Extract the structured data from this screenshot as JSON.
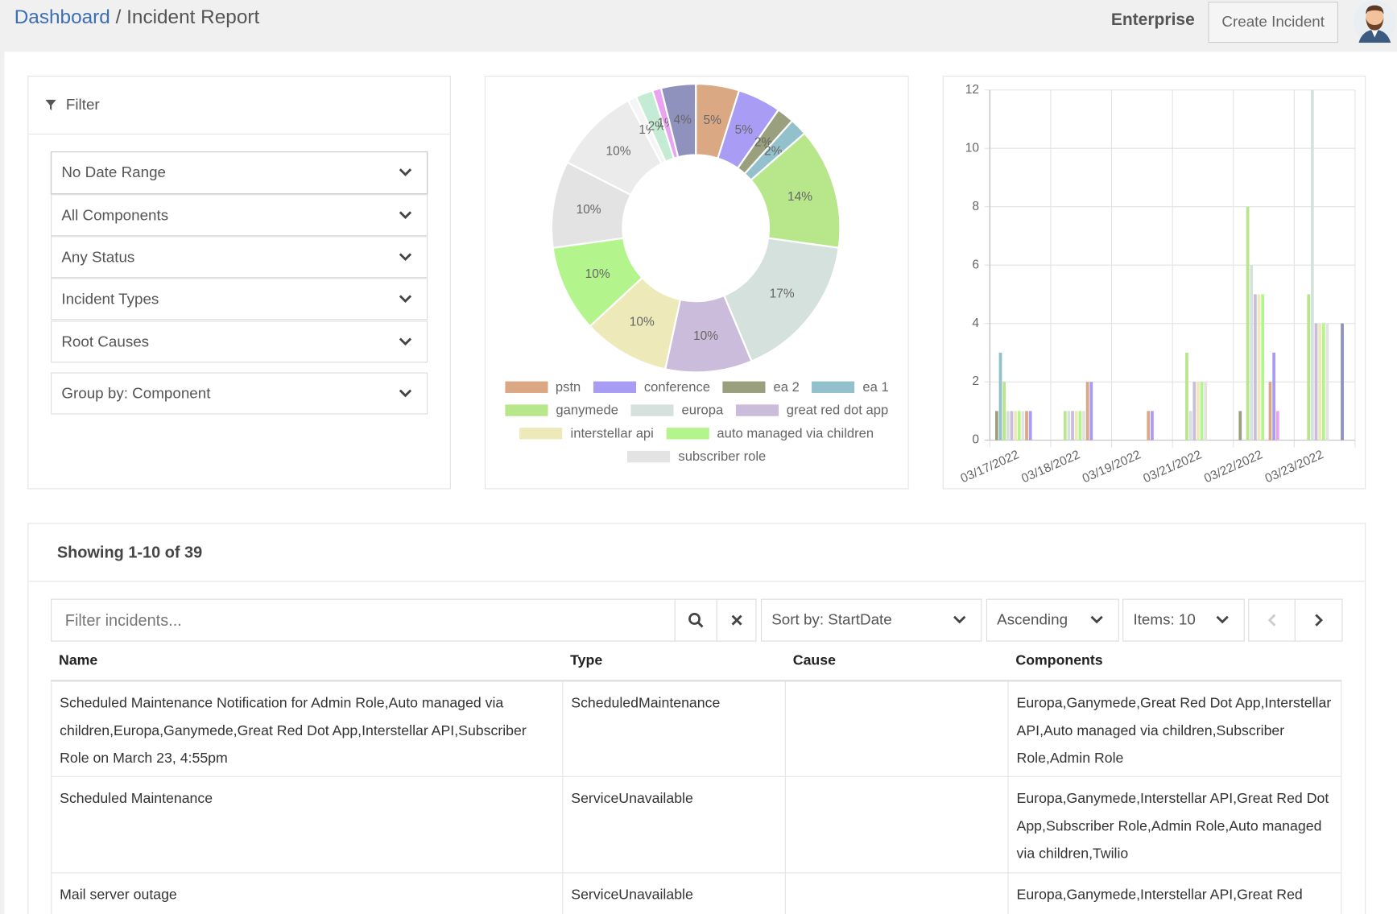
{
  "header": {
    "breadcrumb": [
      "Dashboard",
      "Incident Report"
    ],
    "separator": "/",
    "plan": "Enterprise",
    "button": "Create Incident"
  },
  "filter": {
    "title": "Filter",
    "options": [
      "No Date Range",
      "All Components",
      "Any Status",
      "Incident Types",
      "Root Causes"
    ],
    "group_by": "Group by: Component"
  },
  "chart_data": [
    {
      "type": "pie",
      "donut": true,
      "categories": [
        "pstn",
        "conference",
        "ea 2",
        "ea 1",
        "ganymede",
        "europa",
        "great red dot app",
        "interstellar api",
        "auto managed via children",
        "subscriber role",
        null,
        null,
        null,
        null,
        null
      ],
      "values": [
        5,
        5,
        2,
        2,
        14,
        17,
        10,
        10,
        10,
        10,
        10,
        1,
        2,
        1,
        4
      ],
      "value_labels": [
        "5%",
        "5%",
        "2%",
        "2%",
        "14%",
        "17%",
        "10%",
        "10%",
        "10%",
        "10%",
        "10%",
        "1%",
        "2%",
        "1%",
        "4%"
      ],
      "colors": [
        "#dba884",
        "#a99cf5",
        "#9aa07e",
        "#93c1cb",
        "#b8e68a",
        "#d5e1dd",
        "#cbbcdb",
        "#ede9b9",
        "#b3f58c",
        "#e3e3e3",
        "#ebebeb",
        "#f5f5f5",
        "#c4ecd4",
        "#e9a3f0",
        "#8f92bd"
      ]
    },
    {
      "type": "bar",
      "categories": [
        "03/17/2022",
        "03/18/2022",
        "03/19/2022",
        "03/21/2022",
        "03/22/2022",
        "03/23/2022"
      ],
      "series": [
        {
          "color": "#9aa07e",
          "values": [
            1,
            0,
            0,
            0,
            1,
            0
          ]
        },
        {
          "color": "#93c1cb",
          "values": [
            3,
            0,
            0,
            0,
            0,
            0
          ]
        },
        {
          "color": "#b8e68a",
          "values": [
            2,
            1,
            0,
            3,
            8,
            5
          ]
        },
        {
          "color": "#d5e1dd",
          "values": [
            1,
            1,
            0,
            1,
            6,
            12
          ]
        },
        {
          "color": "#cbbcdb",
          "values": [
            1,
            1,
            0,
            2,
            5,
            4
          ]
        },
        {
          "color": "#ede9b9",
          "values": [
            1,
            1,
            0,
            2,
            5,
            4
          ]
        },
        {
          "color": "#b3f58c",
          "values": [
            1,
            1,
            0,
            2,
            5,
            4
          ]
        },
        {
          "color": "#e3e3e3",
          "values": [
            1,
            1,
            0,
            2,
            0,
            4
          ]
        },
        {
          "color": "#dba884",
          "values": [
            1,
            2,
            1,
            0,
            2,
            0
          ]
        },
        {
          "color": "#a99cf5",
          "values": [
            1,
            2,
            1,
            0,
            3,
            0
          ]
        },
        {
          "color": "#e9a3f0",
          "values": [
            0,
            0,
            0,
            0,
            1,
            0
          ]
        },
        {
          "color": "#8f92bd",
          "values": [
            0,
            0,
            0,
            0,
            0,
            4
          ]
        }
      ],
      "ylim": [
        0,
        12
      ],
      "yticks": [
        0,
        2,
        4,
        6,
        8,
        10,
        12
      ],
      "grid": true
    }
  ],
  "list": {
    "summary": "Showing 1-10 of 39",
    "search_placeholder": "Filter incidents...",
    "sort": "Sort by: StartDate",
    "order": "Ascending",
    "items": "Items: 10"
  },
  "table": {
    "columns": [
      "Name",
      "Type",
      "Cause",
      "Components"
    ],
    "rows": [
      [
        "Scheduled Maintenance Notification for Admin Role,Auto managed via children,Europa,Ganymede,Great Red Dot App,Interstellar API,Subscriber Role on March 23, 4:55pm",
        "ScheduledMaintenance",
        "",
        "Europa,Ganymede,Great Red Dot App,Interstellar API,Auto managed via children,Subscriber Role,Admin Role"
      ],
      [
        "Scheduled Maintenance",
        "ServiceUnavailable",
        "",
        "Europa,Ganymede,Interstellar API,Great Red Dot App,Subscriber Role,Admin Role,Auto managed via children,Twilio"
      ],
      [
        "Mail server outage",
        "ServiceUnavailable",
        "",
        "Europa,Ganymede,Interstellar API,Great Red"
      ]
    ]
  }
}
